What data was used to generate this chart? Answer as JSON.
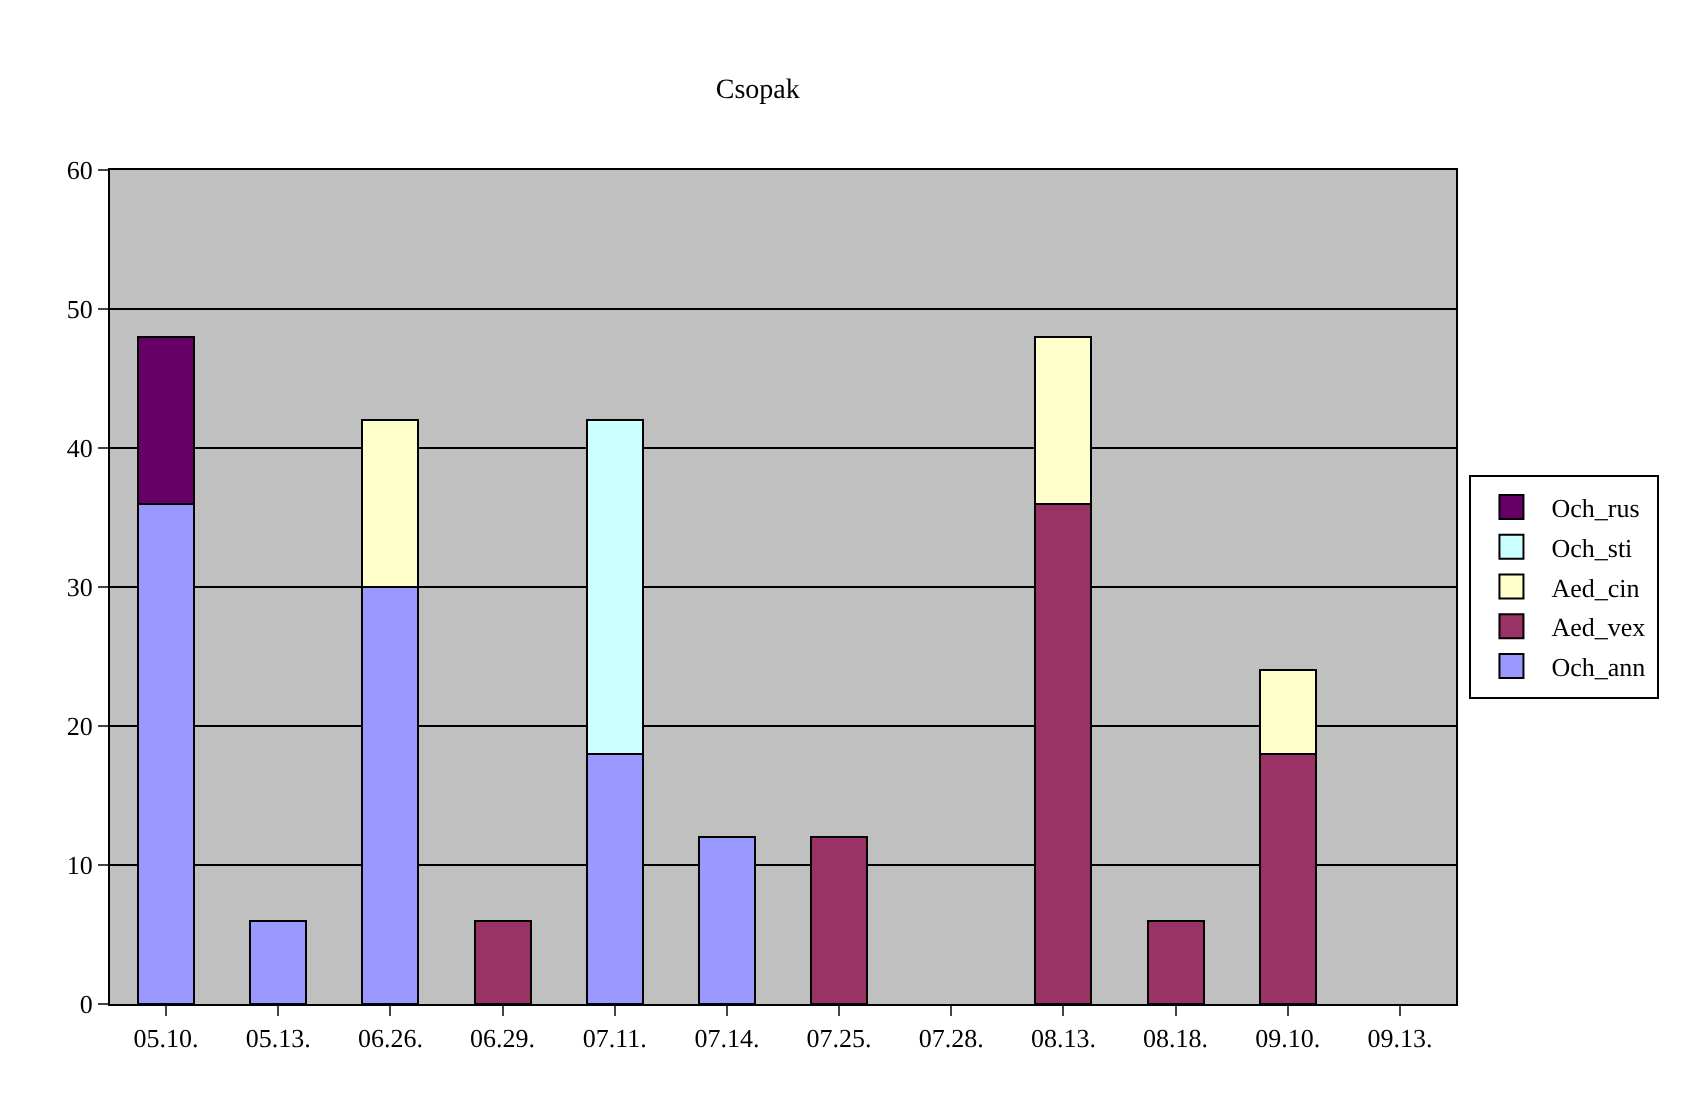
{
  "chart_data": {
    "type": "bar",
    "title": "Csopak",
    "stacked": true,
    "categories": [
      "05.10.",
      "05.13.",
      "06.26.",
      "06.29.",
      "07.11.",
      "07.14.",
      "07.25.",
      "07.28.",
      "08.13.",
      "08.18.",
      "09.10.",
      "09.13."
    ],
    "series": [
      {
        "name": "Och_ann",
        "color": "#9999ff",
        "values": [
          36,
          6,
          30,
          null,
          18,
          12,
          null,
          null,
          null,
          null,
          null,
          null
        ]
      },
      {
        "name": "Aed_vex",
        "color": "#993366",
        "values": [
          null,
          null,
          null,
          6,
          null,
          null,
          12,
          null,
          36,
          6,
          18,
          null
        ]
      },
      {
        "name": "Aed_cin",
        "color": "#ffffcc",
        "values": [
          null,
          null,
          12,
          null,
          null,
          null,
          null,
          null,
          12,
          null,
          6,
          null
        ]
      },
      {
        "name": "Och_sti",
        "color": "#ccffff",
        "values": [
          null,
          null,
          null,
          null,
          24,
          null,
          null,
          null,
          null,
          null,
          null,
          null
        ]
      },
      {
        "name": "Och_rus",
        "color": "#660066",
        "values": [
          12,
          null,
          null,
          null,
          null,
          null,
          null,
          null,
          null,
          null,
          null,
          null
        ]
      }
    ],
    "ylim": [
      0,
      60
    ],
    "yticks": [
      0,
      10,
      20,
      30,
      40,
      50,
      60
    ],
    "grid": "y",
    "legend": "right"
  }
}
